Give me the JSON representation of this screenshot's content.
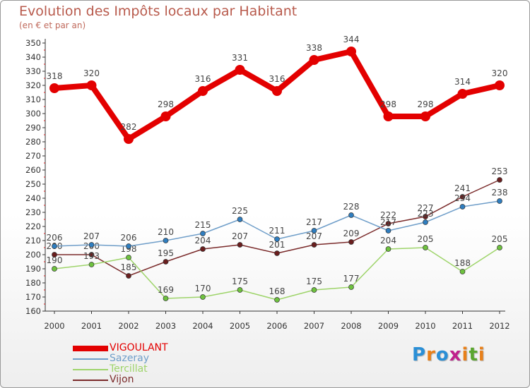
{
  "title": "Evolution des Impôts locaux par Habitant",
  "subtitle": "(en € et par an)",
  "logo": {
    "letters": [
      "P",
      "r",
      "o",
      "x",
      "i",
      "t",
      "i"
    ],
    "colors": [
      "#2a8fd6",
      "#e8801a",
      "#2a8fd6",
      "#c01f8c",
      "#e8801a",
      "#5aa62e",
      "#e8801a"
    ]
  },
  "legend": [
    {
      "label": "VIGOULANT",
      "color": "#e30000"
    },
    {
      "label": "Sazeray",
      "color": "#6f9ec9"
    },
    {
      "label": "Tercillat",
      "color": "#9ed46a"
    },
    {
      "label": "Vijon",
      "color": "#7a2a2a"
    }
  ],
  "chart_data": {
    "type": "line",
    "title": "Evolution des Impôts locaux par Habitant",
    "subtitle": "(en € et par an)",
    "xlabel": "",
    "ylabel": "",
    "ylim": [
      160,
      350
    ],
    "ytick_step": 10,
    "grid": false,
    "legend_position": "bottom-left",
    "x": [
      "2000",
      "2001",
      "2002",
      "2003",
      "2004",
      "2005",
      "2006",
      "2007",
      "2008",
      "2009",
      "2010",
      "2011",
      "2012"
    ],
    "series": [
      {
        "name": "VIGOULANT",
        "color": "#e30000",
        "marker_color": "#e30000",
        "values": [
          318,
          320,
          282,
          298,
          316,
          331,
          316,
          338,
          344,
          298,
          298,
          314,
          320
        ]
      },
      {
        "name": "Sazeray",
        "color": "#6f9ec9",
        "marker_color": "#2f7ec0",
        "values": [
          206,
          207,
          206,
          210,
          215,
          225,
          211,
          217,
          228,
          217,
          223,
          234,
          238
        ]
      },
      {
        "name": "Tercillat",
        "color": "#9ed46a",
        "marker_color": "#6ec23e",
        "values": [
          190,
          193,
          198,
          169,
          170,
          175,
          168,
          175,
          177,
          204,
          205,
          188,
          205
        ]
      },
      {
        "name": "Vijon",
        "color": "#7a2a2a",
        "marker_color": "#6a1e1e",
        "values": [
          200,
          200,
          185,
          195,
          204,
          207,
          201,
          207,
          209,
          222,
          227,
          241,
          253
        ]
      }
    ]
  }
}
